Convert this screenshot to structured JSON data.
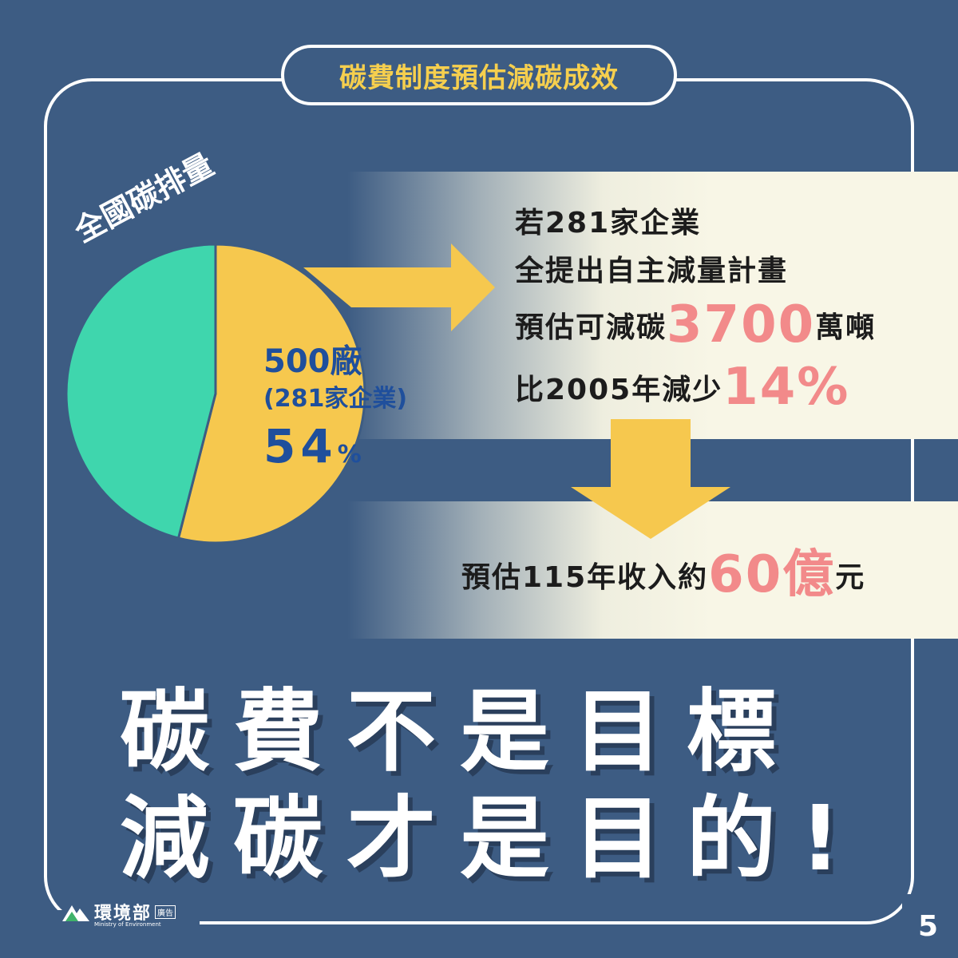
{
  "title": "碳費制度預估減碳成效",
  "chart_data": {
    "type": "pie",
    "title": "全國碳排量",
    "slices": [
      {
        "label": "500廠 (281家企業)",
        "value": 54,
        "color": "#f6c84e"
      },
      {
        "label": "",
        "value": 46,
        "color": "#3fd6ad"
      }
    ]
  },
  "pie": {
    "title": "全國碳排量",
    "slice_plants": "500廠",
    "slice_companies": "(281家企業)",
    "slice_percent": "54",
    "slice_percent_unit": "%"
  },
  "info": {
    "line1": "若281家企業",
    "line2": "全提出自主減量計畫",
    "line3_prefix": "預估可減碳",
    "line3_value": "3700",
    "line3_suffix": "萬噸",
    "line4_prefix": "比2005年減少",
    "line4_value": "14",
    "line4_unit": "%",
    "revenue_prefix": "預估115年收入約",
    "revenue_value": "60億",
    "revenue_suffix": "元"
  },
  "slogan": {
    "line1": "碳費不是目標",
    "line2": "減碳才是目的!"
  },
  "footer": {
    "org_name": "環境部",
    "org_sub": "Ministry of Environment",
    "ad_badge": "廣告",
    "page_number": "5"
  },
  "colors": {
    "background": "#3d5c83",
    "title_yellow": "#f6cf4e",
    "slice_yellow": "#f6c84e",
    "slice_green": "#3fd6ad",
    "highlight_pink": "#f28a8a",
    "label_blue": "#1f4f9c",
    "band": "#f8f6e6"
  }
}
